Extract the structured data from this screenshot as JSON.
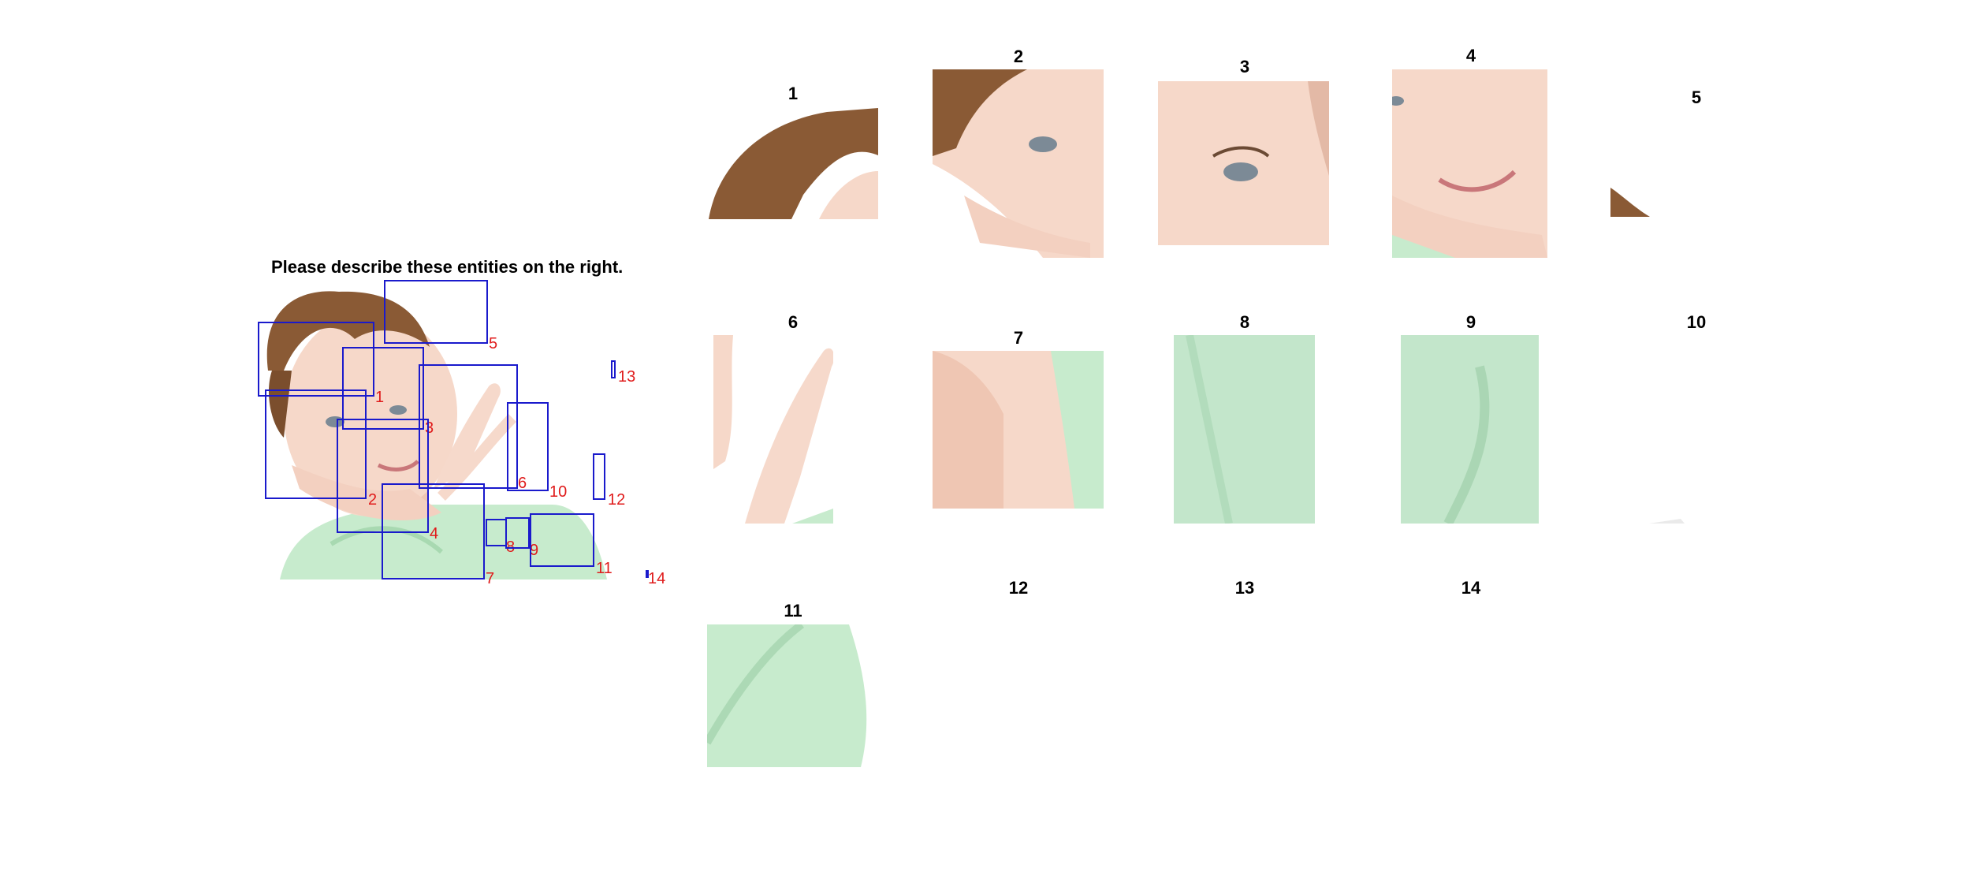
{
  "prompt": "Please describe these entities on the right.",
  "box_labels": [
    "1",
    "2",
    "3",
    "4",
    "5",
    "6",
    "7",
    "8",
    "9",
    "10",
    "11",
    "12",
    "13",
    "14"
  ],
  "crop_titles": [
    "1",
    "2",
    "3",
    "4",
    "5",
    "6",
    "7",
    "8",
    "9",
    "10",
    "11",
    "12",
    "13",
    "14"
  ],
  "colors": {
    "box": "#1a1acc",
    "label": "#e01b1b",
    "shirt": "#bfe6c6",
    "skin": "#f3d3c3",
    "hair": "#8a5a35"
  }
}
